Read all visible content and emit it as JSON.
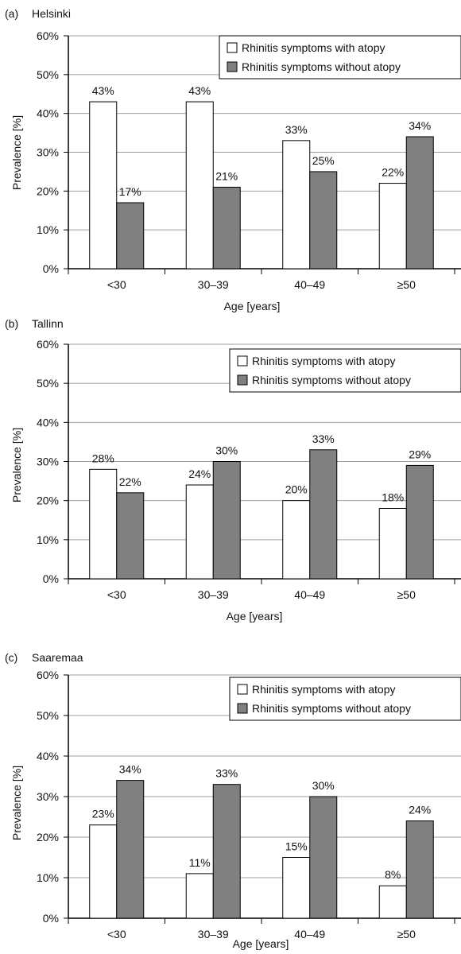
{
  "colors": {
    "with_atopy": "#ffffff",
    "without_atopy": "#808080",
    "grid": "#a0a0a0",
    "axis": "#000000"
  },
  "chart_data": [
    {
      "type": "bar",
      "panel_label": "(a)",
      "title": "Helsinki",
      "xlabel": "Age [years]",
      "ylabel": "Prevalence [%]",
      "categories": [
        "<30",
        "30–39",
        "40–49",
        "≥50"
      ],
      "yticks": [
        "0%",
        "10%",
        "20%",
        "30%",
        "40%",
        "50%",
        "60%"
      ],
      "ylim": [
        0,
        60
      ],
      "grid": true,
      "legend_position": "top-right",
      "series": [
        {
          "name": "Rhinitis symptoms with atopy",
          "color": "#ffffff",
          "values": [
            43,
            43,
            33,
            22
          ],
          "labels": [
            "43%",
            "43%",
            "33%",
            "22%"
          ]
        },
        {
          "name": "Rhinitis symptoms without atopy",
          "color": "#808080",
          "values": [
            17,
            21,
            25,
            34
          ],
          "labels": [
            "17%",
            "21%",
            "25%",
            "34%"
          ]
        }
      ]
    },
    {
      "type": "bar",
      "panel_label": "(b)",
      "title": "Tallinn",
      "xlabel": "Age [years]",
      "ylabel": "Prevalence [%]",
      "categories": [
        "<30",
        "30–39",
        "40–49",
        "≥50"
      ],
      "yticks": [
        "0%",
        "10%",
        "20%",
        "30%",
        "40%",
        "50%",
        "60%"
      ],
      "ylim": [
        0,
        60
      ],
      "grid": true,
      "legend_position": "top-right",
      "series": [
        {
          "name": "Rhinitis symptoms with atopy",
          "color": "#ffffff",
          "values": [
            28,
            24,
            20,
            18
          ],
          "labels": [
            "28%",
            "24%",
            "20%",
            "18%"
          ]
        },
        {
          "name": "Rhinitis symptoms without atopy",
          "color": "#808080",
          "values": [
            22,
            30,
            33,
            29
          ],
          "labels": [
            "22%",
            "30%",
            "33%",
            "29%"
          ]
        }
      ]
    },
    {
      "type": "bar",
      "panel_label": "(c)",
      "title": "Saaremaa",
      "xlabel": "Age [years]",
      "ylabel": "Prevalence [%]",
      "categories": [
        "<30",
        "30–39",
        "40–49",
        "≥50"
      ],
      "yticks": [
        "0%",
        "10%",
        "20%",
        "30%",
        "40%",
        "50%",
        "60%"
      ],
      "ylim": [
        0,
        60
      ],
      "grid": true,
      "legend_position": "top-right",
      "series": [
        {
          "name": "Rhinitis symptoms with atopy",
          "color": "#ffffff",
          "values": [
            23,
            11,
            15,
            8
          ],
          "labels": [
            "23%",
            "11%",
            "15%",
            "8%"
          ]
        },
        {
          "name": "Rhinitis symptoms without atopy",
          "color": "#808080",
          "values": [
            34,
            33,
            30,
            24
          ],
          "labels": [
            "34%",
            "33%",
            "30%",
            "24%"
          ]
        }
      ]
    }
  ]
}
